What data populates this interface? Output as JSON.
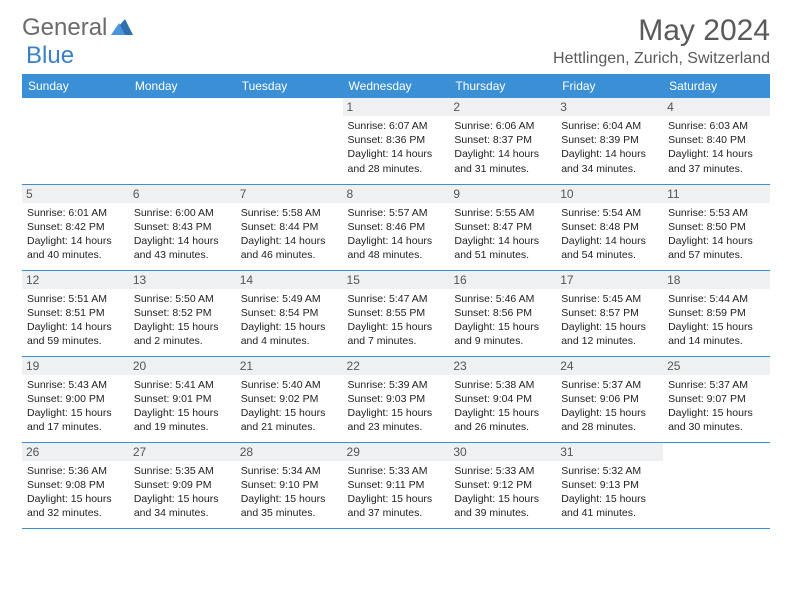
{
  "brand": {
    "text1": "General",
    "text2": "Blue"
  },
  "title": "May 2024",
  "location": "Hettlingen, Zurich, Switzerland",
  "colors": {
    "header_bg": "#3b8fd4",
    "daynum_bg": "#eef0f2",
    "rule": "#3b8fd4"
  },
  "weekdays": [
    "Sunday",
    "Monday",
    "Tuesday",
    "Wednesday",
    "Thursday",
    "Friday",
    "Saturday"
  ],
  "weeks": [
    [
      null,
      null,
      null,
      {
        "n": "1",
        "sr": "6:07 AM",
        "ss": "8:36 PM",
        "dl": "14 hours and 28 minutes."
      },
      {
        "n": "2",
        "sr": "6:06 AM",
        "ss": "8:37 PM",
        "dl": "14 hours and 31 minutes."
      },
      {
        "n": "3",
        "sr": "6:04 AM",
        "ss": "8:39 PM",
        "dl": "14 hours and 34 minutes."
      },
      {
        "n": "4",
        "sr": "6:03 AM",
        "ss": "8:40 PM",
        "dl": "14 hours and 37 minutes."
      }
    ],
    [
      {
        "n": "5",
        "sr": "6:01 AM",
        "ss": "8:42 PM",
        "dl": "14 hours and 40 minutes."
      },
      {
        "n": "6",
        "sr": "6:00 AM",
        "ss": "8:43 PM",
        "dl": "14 hours and 43 minutes."
      },
      {
        "n": "7",
        "sr": "5:58 AM",
        "ss": "8:44 PM",
        "dl": "14 hours and 46 minutes."
      },
      {
        "n": "8",
        "sr": "5:57 AM",
        "ss": "8:46 PM",
        "dl": "14 hours and 48 minutes."
      },
      {
        "n": "9",
        "sr": "5:55 AM",
        "ss": "8:47 PM",
        "dl": "14 hours and 51 minutes."
      },
      {
        "n": "10",
        "sr": "5:54 AM",
        "ss": "8:48 PM",
        "dl": "14 hours and 54 minutes."
      },
      {
        "n": "11",
        "sr": "5:53 AM",
        "ss": "8:50 PM",
        "dl": "14 hours and 57 minutes."
      }
    ],
    [
      {
        "n": "12",
        "sr": "5:51 AM",
        "ss": "8:51 PM",
        "dl": "14 hours and 59 minutes."
      },
      {
        "n": "13",
        "sr": "5:50 AM",
        "ss": "8:52 PM",
        "dl": "15 hours and 2 minutes."
      },
      {
        "n": "14",
        "sr": "5:49 AM",
        "ss": "8:54 PM",
        "dl": "15 hours and 4 minutes."
      },
      {
        "n": "15",
        "sr": "5:47 AM",
        "ss": "8:55 PM",
        "dl": "15 hours and 7 minutes."
      },
      {
        "n": "16",
        "sr": "5:46 AM",
        "ss": "8:56 PM",
        "dl": "15 hours and 9 minutes."
      },
      {
        "n": "17",
        "sr": "5:45 AM",
        "ss": "8:57 PM",
        "dl": "15 hours and 12 minutes."
      },
      {
        "n": "18",
        "sr": "5:44 AM",
        "ss": "8:59 PM",
        "dl": "15 hours and 14 minutes."
      }
    ],
    [
      {
        "n": "19",
        "sr": "5:43 AM",
        "ss": "9:00 PM",
        "dl": "15 hours and 17 minutes."
      },
      {
        "n": "20",
        "sr": "5:41 AM",
        "ss": "9:01 PM",
        "dl": "15 hours and 19 minutes."
      },
      {
        "n": "21",
        "sr": "5:40 AM",
        "ss": "9:02 PM",
        "dl": "15 hours and 21 minutes."
      },
      {
        "n": "22",
        "sr": "5:39 AM",
        "ss": "9:03 PM",
        "dl": "15 hours and 23 minutes."
      },
      {
        "n": "23",
        "sr": "5:38 AM",
        "ss": "9:04 PM",
        "dl": "15 hours and 26 minutes."
      },
      {
        "n": "24",
        "sr": "5:37 AM",
        "ss": "9:06 PM",
        "dl": "15 hours and 28 minutes."
      },
      {
        "n": "25",
        "sr": "5:37 AM",
        "ss": "9:07 PM",
        "dl": "15 hours and 30 minutes."
      }
    ],
    [
      {
        "n": "26",
        "sr": "5:36 AM",
        "ss": "9:08 PM",
        "dl": "15 hours and 32 minutes."
      },
      {
        "n": "27",
        "sr": "5:35 AM",
        "ss": "9:09 PM",
        "dl": "15 hours and 34 minutes."
      },
      {
        "n": "28",
        "sr": "5:34 AM",
        "ss": "9:10 PM",
        "dl": "15 hours and 35 minutes."
      },
      {
        "n": "29",
        "sr": "5:33 AM",
        "ss": "9:11 PM",
        "dl": "15 hours and 37 minutes."
      },
      {
        "n": "30",
        "sr": "5:33 AM",
        "ss": "9:12 PM",
        "dl": "15 hours and 39 minutes."
      },
      {
        "n": "31",
        "sr": "5:32 AM",
        "ss": "9:13 PM",
        "dl": "15 hours and 41 minutes."
      },
      null
    ]
  ]
}
